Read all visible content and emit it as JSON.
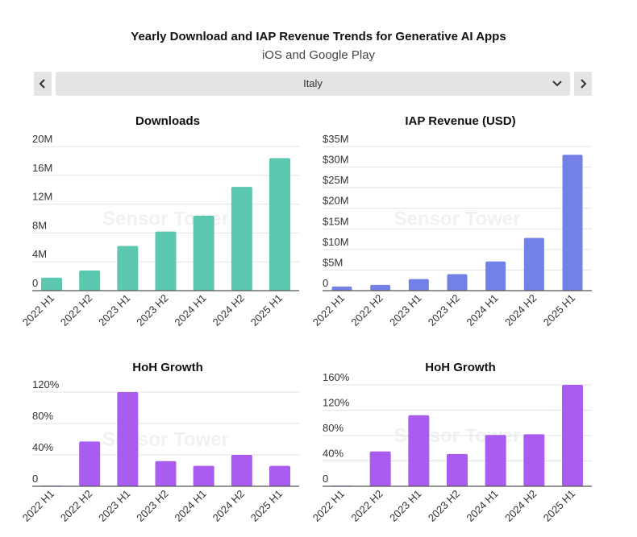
{
  "header": {
    "title": "Yearly Download and IAP Revenue Trends for Generative AI Apps",
    "subtitle": "iOS and Google Play"
  },
  "selector": {
    "value": "Italy"
  },
  "watermark": "Sensor Tower",
  "colors": {
    "downloads": "#5cc8b0",
    "revenue": "#7380e6",
    "growth": "#a95cf0",
    "grid": "#e3e3e3",
    "axis": "#555555"
  },
  "chart_data": [
    {
      "type": "bar",
      "title": "Downloads",
      "categories": [
        "2022 H1",
        "2022 H2",
        "2023 H1",
        "2023 H2",
        "2024 H1",
        "2024 H2",
        "2025 H1"
      ],
      "values": [
        1.8,
        2.8,
        6.2,
        8.2,
        10.4,
        14.4,
        18.4
      ],
      "unit": "M",
      "ylim": [
        0,
        20
      ],
      "ytick_values": [
        0,
        4,
        8,
        12,
        16,
        20
      ],
      "ytick_labels": [
        "0",
        "4M",
        "8M",
        "12M",
        "16M",
        "20M"
      ],
      "grid": true,
      "color": "#5cc8b0"
    },
    {
      "type": "bar",
      "title": "IAP Revenue (USD)",
      "categories": [
        "2022 H1",
        "2022 H2",
        "2023 H1",
        "2023 H2",
        "2024 H1",
        "2024 H2",
        "2025 H1"
      ],
      "values": [
        1.0,
        1.4,
        2.8,
        4.0,
        7.1,
        12.8,
        33.0
      ],
      "unit": "M USD",
      "ylim": [
        0,
        35
      ],
      "ytick_values": [
        0,
        5,
        10,
        15,
        20,
        25,
        30,
        35
      ],
      "ytick_labels": [
        "0",
        "$5M",
        "$10M",
        "$15M",
        "$20M",
        "$25M",
        "$30M",
        "$35M"
      ],
      "grid": true,
      "color": "#7380e6"
    },
    {
      "type": "bar",
      "title": "HoH Growth",
      "categories": [
        "2022 H1",
        "2022 H2",
        "2023 H1",
        "2023 H2",
        "2024 H1",
        "2024 H2",
        "2025 H1"
      ],
      "values": [
        0,
        57,
        120,
        32,
        26,
        40,
        26
      ],
      "unit": "%",
      "ylim": [
        0,
        135
      ],
      "ytick_values": [
        0,
        40,
        80,
        120
      ],
      "ytick_labels": [
        "0",
        "40%",
        "80%",
        "120%"
      ],
      "grid": true,
      "color": "#a95cf0"
    },
    {
      "type": "bar",
      "title": "HoH Growth",
      "categories": [
        "2022 H1",
        "2022 H2",
        "2023 H1",
        "2023 H2",
        "2024 H1",
        "2024 H2",
        "2025 H1"
      ],
      "values": [
        0,
        55,
        112,
        51,
        81,
        82,
        160
      ],
      "unit": "%",
      "ylim": [
        0,
        170
      ],
      "ytick_values": [
        0,
        40,
        80,
        120,
        160
      ],
      "ytick_labels": [
        "0",
        "40%",
        "80%",
        "120%",
        "160%"
      ],
      "grid": true,
      "color": "#a95cf0"
    }
  ]
}
